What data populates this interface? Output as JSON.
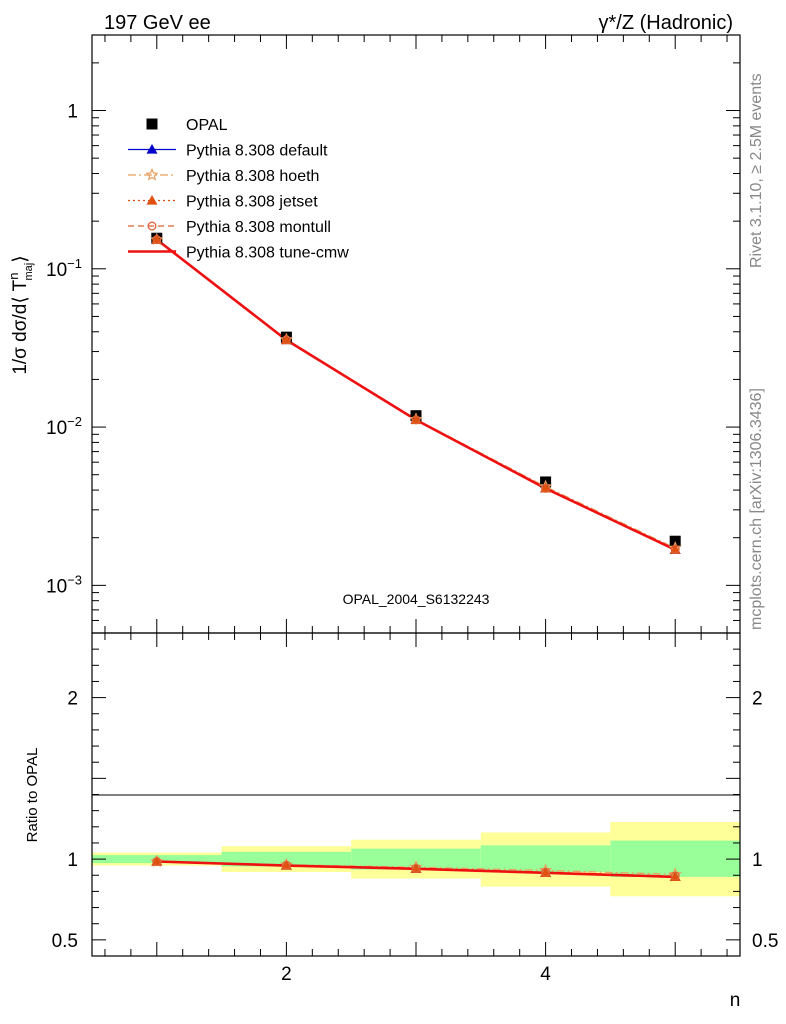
{
  "header": {
    "left_title": "197 GeV ee",
    "right_title": "γ*/Z (Hadronic)"
  },
  "side_labels": {
    "rivet": "Rivet 3.1.10, ≥ 2.5M events",
    "mcplots": "mcplots.cern.ch [arXiv:1306.3436]"
  },
  "watermark": "OPAL_2004_S6132243",
  "colors": {
    "opal": "#000000",
    "default": "#0000cc",
    "hoeth": "#e8a060",
    "jetset": "#e05010",
    "montull": "#e06030",
    "tunecmw": "#ee1111",
    "band_inner": "#99ff99",
    "band_outer": "#ffff99",
    "watermark": "#999999"
  },
  "chart_data": [
    {
      "type": "line",
      "panel": "main",
      "ylabel": "1/σ dσ/d⟨ T",
      "ylabel_sup": "n",
      "ylabel_sub": "maj",
      "ylabel_end": "⟩",
      "yscale": "log",
      "ylim": [
        0.0005,
        3
      ],
      "xlim": [
        0.5,
        5.5
      ],
      "ytick_base": "10",
      "yticks": [
        {
          "value": 1,
          "label": "1",
          "exp": ""
        },
        {
          "value": 0.1,
          "label": "10",
          "exp": "−1"
        },
        {
          "value": 0.01,
          "label": "10",
          "exp": "−2"
        },
        {
          "value": 0.001,
          "label": "10",
          "exp": "−3"
        }
      ],
      "x": [
        1,
        2,
        3,
        4,
        5
      ],
      "data": {
        "name": "OPAL",
        "values": [
          0.156,
          0.037,
          0.0118,
          0.0045,
          0.0019
        ]
      },
      "series": [
        {
          "name": "Pythia 8.308 default",
          "key": "default",
          "marker": "triangle",
          "dash": "",
          "values": [
            0.153,
            0.0355,
            0.0111,
            0.0041,
            0.00168
          ]
        },
        {
          "name": "Pythia 8.308 hoeth",
          "key": "hoeth",
          "marker": "star",
          "dash": "8,3,2,3",
          "values": [
            0.153,
            0.0357,
            0.0112,
            0.0042,
            0.00172
          ]
        },
        {
          "name": "Pythia 8.308 jetset",
          "key": "jetset",
          "marker": "triangle",
          "dash": "2,3",
          "values": [
            0.153,
            0.0355,
            0.0111,
            0.0041,
            0.00168
          ]
        },
        {
          "name": "Pythia 8.308 montull",
          "key": "montull",
          "marker": "circle",
          "dash": "6,4",
          "values": [
            0.153,
            0.0356,
            0.0111,
            0.0041,
            0.00169
          ]
        },
        {
          "name": "Pythia 8.308 tune-cmw",
          "key": "tunecmw",
          "marker": "none",
          "dash": "",
          "values": [
            0.153,
            0.0355,
            0.0111,
            0.0041,
            0.00168
          ]
        }
      ]
    },
    {
      "type": "line",
      "panel": "ratio",
      "ylabel": "Ratio to OPAL",
      "xlabel": "n",
      "ylim": [
        0.4,
        2.4
      ],
      "xlim": [
        0.5,
        5.5
      ],
      "yticks": [
        {
          "value": 0.5,
          "label": "0.5"
        },
        {
          "value": 1,
          "label": "1"
        },
        {
          "value": 2,
          "label": "2"
        }
      ],
      "xticks": [
        {
          "value": 2,
          "label": "2"
        },
        {
          "value": 4,
          "label": "4"
        }
      ],
      "bins": [
        [
          0.5,
          1.5
        ],
        [
          1.5,
          2.5
        ],
        [
          2.5,
          3.5
        ],
        [
          3.5,
          4.5
        ],
        [
          4.5,
          5.5
        ]
      ],
      "band_inner": [
        [
          0.975,
          1.025
        ],
        [
          0.955,
          1.045
        ],
        [
          0.935,
          1.065
        ],
        [
          0.92,
          1.085
        ],
        [
          0.89,
          1.115
        ]
      ],
      "band_outer": [
        [
          0.96,
          1.04
        ],
        [
          0.92,
          1.08
        ],
        [
          0.88,
          1.12
        ],
        [
          0.83,
          1.165
        ],
        [
          0.77,
          1.23
        ]
      ],
      "x": [
        1,
        2,
        3,
        4,
        5
      ],
      "series": [
        {
          "key": "default",
          "marker": "triangle",
          "dash": "",
          "values": [
            0.985,
            0.96,
            0.94,
            0.915,
            0.89
          ]
        },
        {
          "key": "hoeth",
          "marker": "star",
          "dash": "8,3,2,3",
          "values": [
            0.985,
            0.965,
            0.95,
            0.93,
            0.905
          ]
        },
        {
          "key": "jetset",
          "marker": "triangle",
          "dash": "2,3",
          "values": [
            0.985,
            0.96,
            0.94,
            0.915,
            0.89
          ]
        },
        {
          "key": "montull",
          "marker": "circle",
          "dash": "6,4",
          "values": [
            0.985,
            0.962,
            0.942,
            0.918,
            0.895
          ]
        },
        {
          "key": "tunecmw",
          "marker": "none",
          "dash": "",
          "values": [
            0.985,
            0.96,
            0.94,
            0.915,
            0.89
          ]
        }
      ]
    }
  ]
}
